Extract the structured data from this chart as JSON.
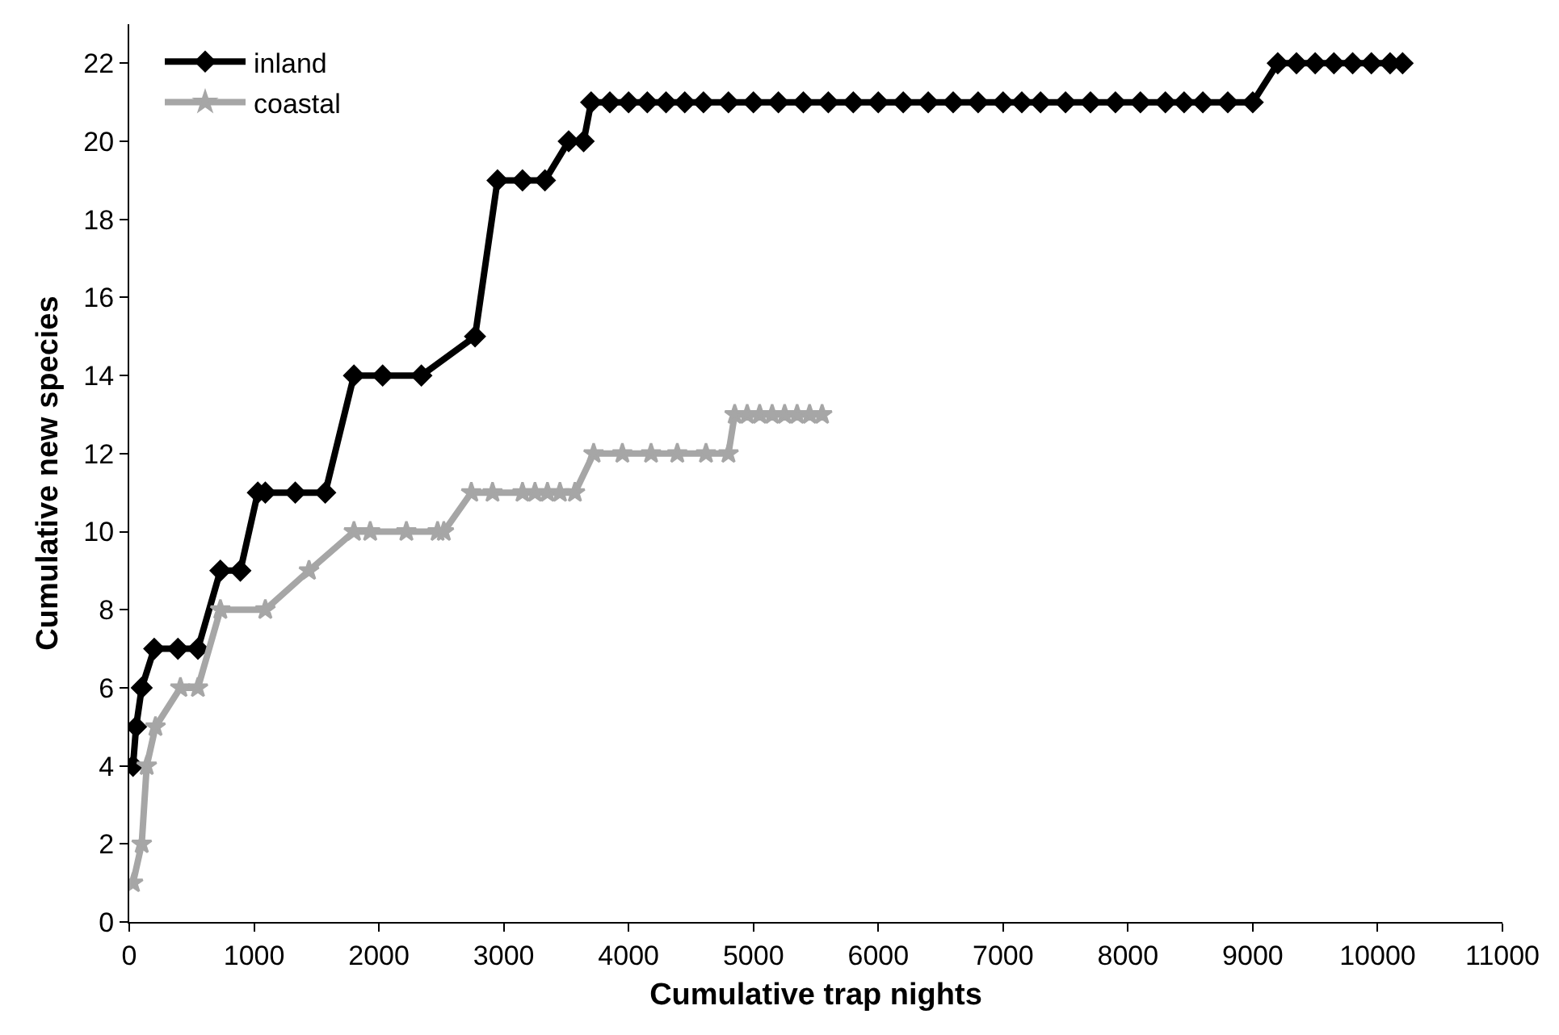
{
  "chart_data": {
    "type": "line",
    "xlabel": "Cumulative trap nights",
    "ylabel": "Cumulative new species",
    "xlim": [
      0,
      11000
    ],
    "xticks": [
      0,
      1000,
      2000,
      3000,
      4000,
      5000,
      6000,
      7000,
      8000,
      9000,
      10000,
      11000
    ],
    "ylim": [
      0,
      23
    ],
    "yticks": [
      0,
      2,
      4,
      6,
      8,
      10,
      12,
      14,
      16,
      18,
      20,
      22
    ],
    "legend": "top left",
    "line_style": "solid",
    "series": [
      {
        "name": "inland",
        "color": "#000000",
        "marker": "diamond",
        "x": [
          30,
          55,
          100,
          200,
          390,
          550,
          730,
          890,
          1030,
          1090,
          1330,
          1570,
          1800,
          2030,
          2340,
          2770,
          2950,
          3150,
          3330,
          3520,
          3640,
          3700,
          3850,
          4000,
          4150,
          4300,
          4450,
          4600,
          4800,
          5000,
          5200,
          5400,
          5600,
          5800,
          6000,
          6200,
          6400,
          6600,
          6800,
          7000,
          7150,
          7300,
          7500,
          7700,
          7900,
          8100,
          8300,
          8450,
          8600,
          8800,
          9000,
          9200,
          9350,
          9500,
          9650,
          9800,
          9950,
          10100,
          10200
        ],
        "values": [
          4,
          5,
          6,
          7,
          7,
          7,
          9,
          9,
          11,
          11,
          11,
          11,
          14,
          14,
          14,
          15,
          19,
          19,
          19,
          20,
          20,
          21,
          21,
          21,
          21,
          21,
          21,
          21,
          21,
          21,
          21,
          21,
          21,
          21,
          21,
          21,
          21,
          21,
          21,
          21,
          21,
          21,
          21,
          21,
          21,
          21,
          21,
          21,
          21,
          21,
          21,
          22,
          22,
          22,
          22,
          22,
          22,
          22,
          22
        ]
      },
      {
        "name": "coastal",
        "color": "#a6a6a6",
        "marker": "star",
        "x": [
          30,
          100,
          140,
          210,
          410,
          550,
          730,
          1090,
          1440,
          1800,
          1930,
          2220,
          2470,
          2520,
          2740,
          2910,
          3150,
          3250,
          3350,
          3450,
          3570,
          3720,
          3950,
          4180,
          4390,
          4620,
          4800,
          4850,
          4950,
          5050,
          5150,
          5250,
          5350,
          5450,
          5550
        ],
        "values": [
          1,
          2,
          4,
          5,
          6,
          6,
          8,
          8,
          9,
          10,
          10,
          10,
          10,
          10,
          11,
          11,
          11,
          11,
          11,
          11,
          11,
          12,
          12,
          12,
          12,
          12,
          12,
          13,
          13,
          13,
          13,
          13,
          13,
          13,
          13
        ]
      }
    ]
  }
}
